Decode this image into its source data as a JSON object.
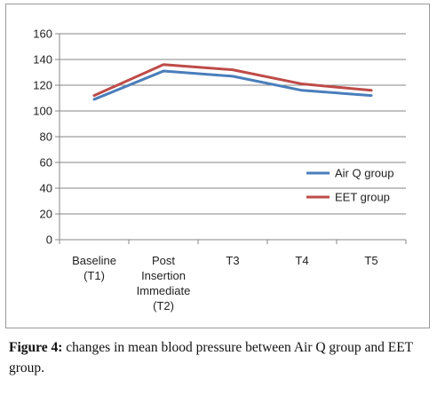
{
  "chart_data": {
    "type": "line",
    "categories": [
      [
        "Baseline",
        "(T1)"
      ],
      [
        "Post",
        "Insertion",
        "Immediate",
        "(T2)"
      ],
      [
        "T3"
      ],
      [
        "T4"
      ],
      [
        "T5"
      ]
    ],
    "ylim": [
      0,
      160
    ],
    "yticks": [
      0,
      20,
      40,
      60,
      80,
      100,
      120,
      140,
      160
    ],
    "grid": true,
    "legend_position": "right",
    "series": [
      {
        "name": "Air Q group",
        "color": "#4a7ebb",
        "values": [
          109,
          131,
          127,
          116,
          112
        ]
      },
      {
        "name": "EET group",
        "color": "#be4b48",
        "values": [
          112,
          136,
          132,
          121,
          116
        ]
      }
    ]
  },
  "caption": {
    "label": "Figure 4:",
    "text": " changes in mean blood pressure between Air Q group and EET group."
  }
}
